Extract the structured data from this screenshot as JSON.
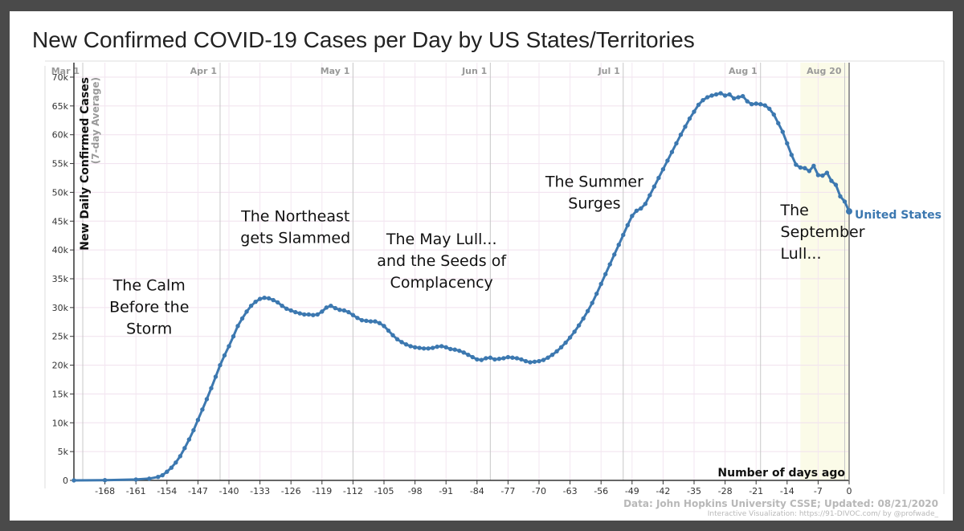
{
  "page": {
    "title": "New Confirmed COVID-19 Cases per Day by US States/Territories"
  },
  "chart_data": {
    "type": "line",
    "title": "New Confirmed COVID-19 Cases per Day by US States/Territories",
    "ylabel": "New Daily Confirmed Cases",
    "ylabel_sub": "(7-day Average)",
    "xlabel": "Number of days ago",
    "xlim": [
      -175,
      0
    ],
    "ylim": [
      0,
      70000
    ],
    "x_ticks": [
      -168,
      -161,
      -154,
      -147,
      -140,
      -133,
      -126,
      -119,
      -112,
      -105,
      -98,
      -91,
      -84,
      -77,
      -70,
      -63,
      -56,
      -49,
      -42,
      -35,
      -28,
      -21,
      -14,
      -7,
      0
    ],
    "y_ticks": [
      {
        "value": 0,
        "label": "0"
      },
      {
        "value": 5000,
        "label": "5k"
      },
      {
        "value": 10000,
        "label": "10k"
      },
      {
        "value": 15000,
        "label": "15k"
      },
      {
        "value": 20000,
        "label": "20k"
      },
      {
        "value": 25000,
        "label": "25k"
      },
      {
        "value": 30000,
        "label": "30k"
      },
      {
        "value": 35000,
        "label": "35k"
      },
      {
        "value": 40000,
        "label": "40k"
      },
      {
        "value": 45000,
        "label": "45k"
      },
      {
        "value": 50000,
        "label": "50k"
      },
      {
        "value": 55000,
        "label": "55k"
      },
      {
        "value": 60000,
        "label": "60k"
      },
      {
        "value": 65000,
        "label": "65k"
      },
      {
        "value": 70000,
        "label": "70k"
      }
    ],
    "date_markers": [
      {
        "label": "Mar 1",
        "x": -173
      },
      {
        "label": "Apr 1",
        "x": -142
      },
      {
        "label": "May 1",
        "x": -112
      },
      {
        "label": "Jun 1",
        "x": -81
      },
      {
        "label": "Jul 1",
        "x": -51
      },
      {
        "label": "Aug 1",
        "x": -20
      },
      {
        "label": "Aug 20",
        "x": -1
      }
    ],
    "series": [
      {
        "name": "United States",
        "color": "#3c78b0",
        "points": [
          [
            -175,
            0
          ],
          [
            -168,
            40
          ],
          [
            -161,
            150
          ],
          [
            -158,
            300
          ],
          [
            -156,
            600
          ],
          [
            -155,
            900
          ],
          [
            -154,
            1500
          ],
          [
            -153,
            2200
          ],
          [
            -152,
            3100
          ],
          [
            -151,
            4200
          ],
          [
            -150,
            5600
          ],
          [
            -149,
            7100
          ],
          [
            -148,
            8700
          ],
          [
            -147,
            10500
          ],
          [
            -146,
            12300
          ],
          [
            -145,
            14100
          ],
          [
            -144,
            16000
          ],
          [
            -143,
            18000
          ],
          [
            -142,
            20000
          ],
          [
            -141,
            21700
          ],
          [
            -140,
            23300
          ],
          [
            -139,
            25000
          ],
          [
            -138,
            26800
          ],
          [
            -137,
            28100
          ],
          [
            -136,
            29300
          ],
          [
            -135,
            30300
          ],
          [
            -134,
            31000
          ],
          [
            -133,
            31500
          ],
          [
            -132,
            31700
          ],
          [
            -131,
            31600
          ],
          [
            -130,
            31300
          ],
          [
            -129,
            30900
          ],
          [
            -128,
            30300
          ],
          [
            -127,
            29800
          ],
          [
            -126,
            29500
          ],
          [
            -125,
            29200
          ],
          [
            -124,
            29000
          ],
          [
            -123,
            28800
          ],
          [
            -122,
            28800
          ],
          [
            -121,
            28700
          ],
          [
            -120,
            28800
          ],
          [
            -119,
            29300
          ],
          [
            -118,
            30000
          ],
          [
            -117,
            30300
          ],
          [
            -116,
            29900
          ],
          [
            -115,
            29600
          ],
          [
            -114,
            29500
          ],
          [
            -113,
            29200
          ],
          [
            -112,
            28700
          ],
          [
            -111,
            28200
          ],
          [
            -110,
            27800
          ],
          [
            -109,
            27700
          ],
          [
            -108,
            27600
          ],
          [
            -107,
            27600
          ],
          [
            -106,
            27300
          ],
          [
            -105,
            26800
          ],
          [
            -104,
            26000
          ],
          [
            -103,
            25200
          ],
          [
            -102,
            24500
          ],
          [
            -101,
            24000
          ],
          [
            -100,
            23600
          ],
          [
            -99,
            23300
          ],
          [
            -98,
            23100
          ],
          [
            -97,
            23000
          ],
          [
            -96,
            22900
          ],
          [
            -95,
            22900
          ],
          [
            -94,
            23000
          ],
          [
            -93,
            23200
          ],
          [
            -92,
            23300
          ],
          [
            -91,
            23100
          ],
          [
            -90,
            22800
          ],
          [
            -89,
            22700
          ],
          [
            -88,
            22500
          ],
          [
            -87,
            22200
          ],
          [
            -86,
            21800
          ],
          [
            -85,
            21400
          ],
          [
            -84,
            21000
          ],
          [
            -83,
            20900
          ],
          [
            -82,
            21200
          ],
          [
            -81,
            21300
          ],
          [
            -80,
            21000
          ],
          [
            -79,
            21100
          ],
          [
            -78,
            21200
          ],
          [
            -77,
            21400
          ],
          [
            -76,
            21300
          ],
          [
            -75,
            21200
          ],
          [
            -74,
            21000
          ],
          [
            -73,
            20700
          ],
          [
            -72,
            20500
          ],
          [
            -71,
            20600
          ],
          [
            -70,
            20700
          ],
          [
            -69,
            20900
          ],
          [
            -68,
            21300
          ],
          [
            -67,
            21800
          ],
          [
            -66,
            22400
          ],
          [
            -65,
            23100
          ],
          [
            -64,
            23900
          ],
          [
            -63,
            24800
          ],
          [
            -62,
            25800
          ],
          [
            -61,
            26900
          ],
          [
            -60,
            28100
          ],
          [
            -59,
            29400
          ],
          [
            -58,
            30800
          ],
          [
            -57,
            32400
          ],
          [
            -56,
            34100
          ],
          [
            -55,
            35800
          ],
          [
            -54,
            37500
          ],
          [
            -53,
            39200
          ],
          [
            -52,
            40900
          ],
          [
            -51,
            42600
          ],
          [
            -50,
            44300
          ],
          [
            -49,
            45900
          ],
          [
            -48,
            46800
          ],
          [
            -47,
            47200
          ],
          [
            -46,
            48000
          ],
          [
            -45,
            49500
          ],
          [
            -44,
            51000
          ],
          [
            -43,
            52500
          ],
          [
            -42,
            54000
          ],
          [
            -41,
            55500
          ],
          [
            -40,
            57000
          ],
          [
            -39,
            58500
          ],
          [
            -38,
            60000
          ],
          [
            -37,
            61400
          ],
          [
            -36,
            62800
          ],
          [
            -35,
            64000
          ],
          [
            -34,
            65200
          ],
          [
            -33,
            66000
          ],
          [
            -32,
            66500
          ],
          [
            -31,
            66800
          ],
          [
            -30,
            67000
          ],
          [
            -29,
            67200
          ],
          [
            -28,
            66800
          ],
          [
            -27,
            67000
          ],
          [
            -26,
            66300
          ],
          [
            -25,
            66500
          ],
          [
            -24,
            66700
          ],
          [
            -23,
            65800
          ],
          [
            -22,
            65300
          ],
          [
            -21,
            65400
          ],
          [
            -20,
            65300
          ],
          [
            -19,
            65100
          ],
          [
            -18,
            64500
          ],
          [
            -17,
            63500
          ],
          [
            -16,
            62000
          ],
          [
            -15,
            60500
          ],
          [
            -14,
            58500
          ],
          [
            -13,
            56500
          ],
          [
            -12,
            54800
          ],
          [
            -11,
            54300
          ],
          [
            -10,
            54200
          ],
          [
            -9,
            53700
          ],
          [
            -8,
            54600
          ],
          [
            -7,
            53000
          ],
          [
            -6,
            52900
          ],
          [
            -5,
            53400
          ],
          [
            -4,
            52000
          ],
          [
            -3,
            51300
          ],
          [
            -2,
            49300
          ],
          [
            -1,
            48400
          ],
          [
            0,
            46700
          ]
        ]
      }
    ],
    "annotations": [
      {
        "lines": [
          "The Calm",
          "Before the",
          "Storm"
        ],
        "x": -158,
        "y": 33000,
        "align": "middle"
      },
      {
        "lines": [
          "The Northeast",
          "gets Slammed"
        ],
        "x": -125,
        "y": 45000,
        "align": "middle"
      },
      {
        "lines": [
          "The May Lull...",
          "and the Seeds of",
          "Complacency"
        ],
        "x": -92,
        "y": 41000,
        "align": "middle"
      },
      {
        "lines": [
          "The Summer",
          "Surges"
        ],
        "x": -57.5,
        "y": 51000,
        "align": "middle"
      },
      {
        "lines": [
          "The",
          "September",
          "Lull..."
        ],
        "x": -15.5,
        "y": 46000,
        "align": "start"
      }
    ],
    "series_label": "United States",
    "source": "Data: John Hopkins University CSSE; Updated: 08/21/2020",
    "credit": "Interactive Visualization: https://91-DIVOC.com/ by @profwade_"
  }
}
